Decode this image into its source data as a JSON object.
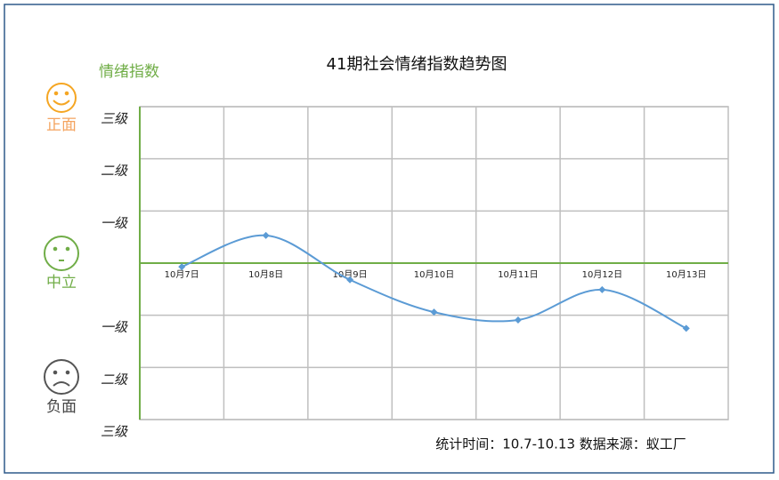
{
  "chart_data": {
    "type": "line",
    "title": "41期社会情绪指数趋势图",
    "y_label": "情绪指数",
    "categories": [
      "10月7日",
      "10月8日",
      "10月9日",
      "10月10日",
      "10月11日",
      "10月12日",
      "10月13日"
    ],
    "values": [
      -0.07,
      0.53,
      -0.32,
      -0.94,
      -1.09,
      -0.51,
      -1.25
    ],
    "color": "#5b9bd5",
    "smooth": true,
    "ylim": [
      -3,
      3
    ],
    "yticks": [
      {
        "value": 3,
        "label": "三级"
      },
      {
        "value": 2,
        "label": "二级"
      },
      {
        "value": 1,
        "label": "一级"
      },
      {
        "value": -1,
        "label": "一级"
      },
      {
        "value": -2,
        "label": "二级"
      },
      {
        "value": -3,
        "label": "三级"
      }
    ],
    "grid": true,
    "sentiment_labels": [
      "正面",
      "中立",
      "负面"
    ],
    "annotation": "统计时间：10.7-10.13  数据来源：蚁工厂"
  }
}
